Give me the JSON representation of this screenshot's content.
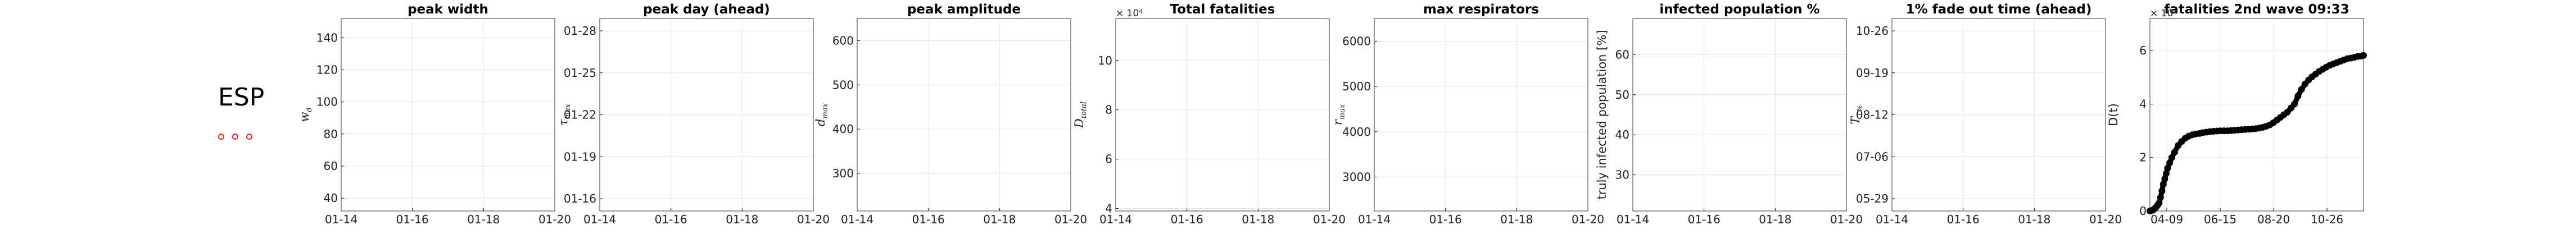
{
  "figure": {
    "country_code": "ESP",
    "dot_colors": [
      "#e0202a",
      "#e0202a",
      "#e0202a"
    ]
  },
  "chart_data": [
    {
      "id": "peak-width",
      "type": "line",
      "title": "peak width",
      "ylabel": "w_d",
      "y_mathtext": {
        "main": "w",
        "sub": "d"
      },
      "xticks": [
        "01-14",
        "01-16",
        "01-18",
        "01-20"
      ],
      "yticks": [
        "40",
        "60",
        "80",
        "100",
        "120",
        "140"
      ],
      "ylim": [
        32,
        152
      ],
      "grid": true,
      "series": []
    },
    {
      "id": "peak-day",
      "type": "line",
      "title": "peak day (ahead)",
      "ylabel": "τ_max",
      "y_mathtext": {
        "main": "τ",
        "sub": "max"
      },
      "xticks": [
        "01-14",
        "01-16",
        "01-18",
        "01-20"
      ],
      "yticks": [
        "01-16",
        "01-19",
        "01-22",
        "01-25",
        "01-28"
      ],
      "ylim": [
        0,
        1
      ],
      "grid": true,
      "series": []
    },
    {
      "id": "peak-amplitude",
      "type": "line",
      "title": "peak amplitude",
      "ylabel": "d_max",
      "y_mathtext": {
        "main": "d",
        "sub": "max"
      },
      "xticks": [
        "01-14",
        "01-16",
        "01-18",
        "01-20"
      ],
      "yticks": [
        "300",
        "400",
        "500",
        "600"
      ],
      "ylim": [
        215,
        650
      ],
      "grid": true,
      "series": []
    },
    {
      "id": "total-fatalities",
      "type": "line",
      "title": "Total fatalities",
      "ylabel": "D_total",
      "y_mathtext": {
        "main": "D",
        "sub": "total"
      },
      "y_multiplier": "× 10⁴",
      "xticks": [
        "01-14",
        "01-16",
        "01-18",
        "01-20"
      ],
      "yticks": [
        "4",
        "6",
        "8",
        "10"
      ],
      "ylim": [
        3.9,
        11.7
      ],
      "grid": true,
      "series": []
    },
    {
      "id": "max-respirators",
      "type": "line",
      "title": "max respirators",
      "ylabel": "r_max",
      "y_mathtext": {
        "main": "r",
        "sub": "max"
      },
      "xticks": [
        "01-14",
        "01-16",
        "01-18",
        "01-20"
      ],
      "yticks": [
        "3000",
        "4000",
        "5000",
        "6000"
      ],
      "ylim": [
        2250,
        6500
      ],
      "grid": true,
      "series": []
    },
    {
      "id": "infected-population",
      "type": "line",
      "title": "infected population %",
      "ylabel": "truly infected population [%]",
      "xticks": [
        "01-14",
        "01-16",
        "01-18",
        "01-20"
      ],
      "yticks": [
        "30",
        "40",
        "50",
        "60"
      ],
      "ylim": [
        21,
        69
      ],
      "grid": true,
      "series": []
    },
    {
      "id": "fade-out-time",
      "type": "line",
      "title": "1% fade out time (ahead)",
      "ylabel": "T_1%",
      "y_mathtext": {
        "main": "T",
        "sub": "1%"
      },
      "xticks": [
        "01-14",
        "01-16",
        "01-18",
        "01-20"
      ],
      "yticks": [
        "05-29",
        "07-06",
        "08-12",
        "09-19",
        "10-26"
      ],
      "ylim": [
        0,
        1
      ],
      "grid": true,
      "series": []
    },
    {
      "id": "fatalities-2nd-wave",
      "type": "line",
      "title": "fatalities 2nd wave 09:33",
      "ylabel": "D(t)",
      "y_multiplier": "× 10⁴",
      "xticks": [
        "04-09",
        "06-15",
        "08-20",
        "10-26"
      ],
      "yticks": [
        "0",
        "2",
        "4",
        "6"
      ],
      "ylim": [
        0,
        7.2
      ],
      "xlim": [
        65,
        368
      ],
      "grid": true,
      "series": [
        {
          "x": [
            65,
            68,
            70,
            72,
            74,
            76,
            78,
            80,
            82,
            84,
            86,
            88,
            90,
            93,
            96,
            100,
            105,
            110,
            115,
            120,
            125,
            130,
            135,
            140,
            145,
            150,
            155,
            160,
            165,
            170,
            175,
            180,
            185,
            190,
            195,
            200,
            205,
            210,
            215,
            220,
            225,
            230,
            235,
            240,
            245,
            250,
            255,
            260,
            265,
            270,
            275,
            280,
            285,
            290,
            295,
            300,
            305,
            310,
            315,
            320,
            325,
            330,
            335,
            340,
            345,
            350,
            355,
            360,
            365,
            368
          ],
          "y": [
            0.0,
            0.02,
            0.05,
            0.1,
            0.15,
            0.22,
            0.3,
            0.5,
            0.75,
            1.0,
            1.2,
            1.4,
            1.6,
            1.8,
            2.0,
            2.2,
            2.45,
            2.6,
            2.72,
            2.8,
            2.85,
            2.88,
            2.9,
            2.93,
            2.95,
            2.97,
            2.98,
            2.99,
            3.0,
            3.0,
            3.0,
            3.01,
            3.02,
            3.03,
            3.04,
            3.05,
            3.06,
            3.07,
            3.08,
            3.1,
            3.13,
            3.17,
            3.22,
            3.3,
            3.4,
            3.5,
            3.6,
            3.7,
            3.85,
            4.0,
            4.3,
            4.55,
            4.75,
            4.9,
            5.02,
            5.12,
            5.22,
            5.3,
            5.38,
            5.45,
            5.5,
            5.55,
            5.6,
            5.65,
            5.7,
            5.72,
            5.75,
            5.78,
            5.8,
            5.82
          ]
        }
      ]
    }
  ]
}
